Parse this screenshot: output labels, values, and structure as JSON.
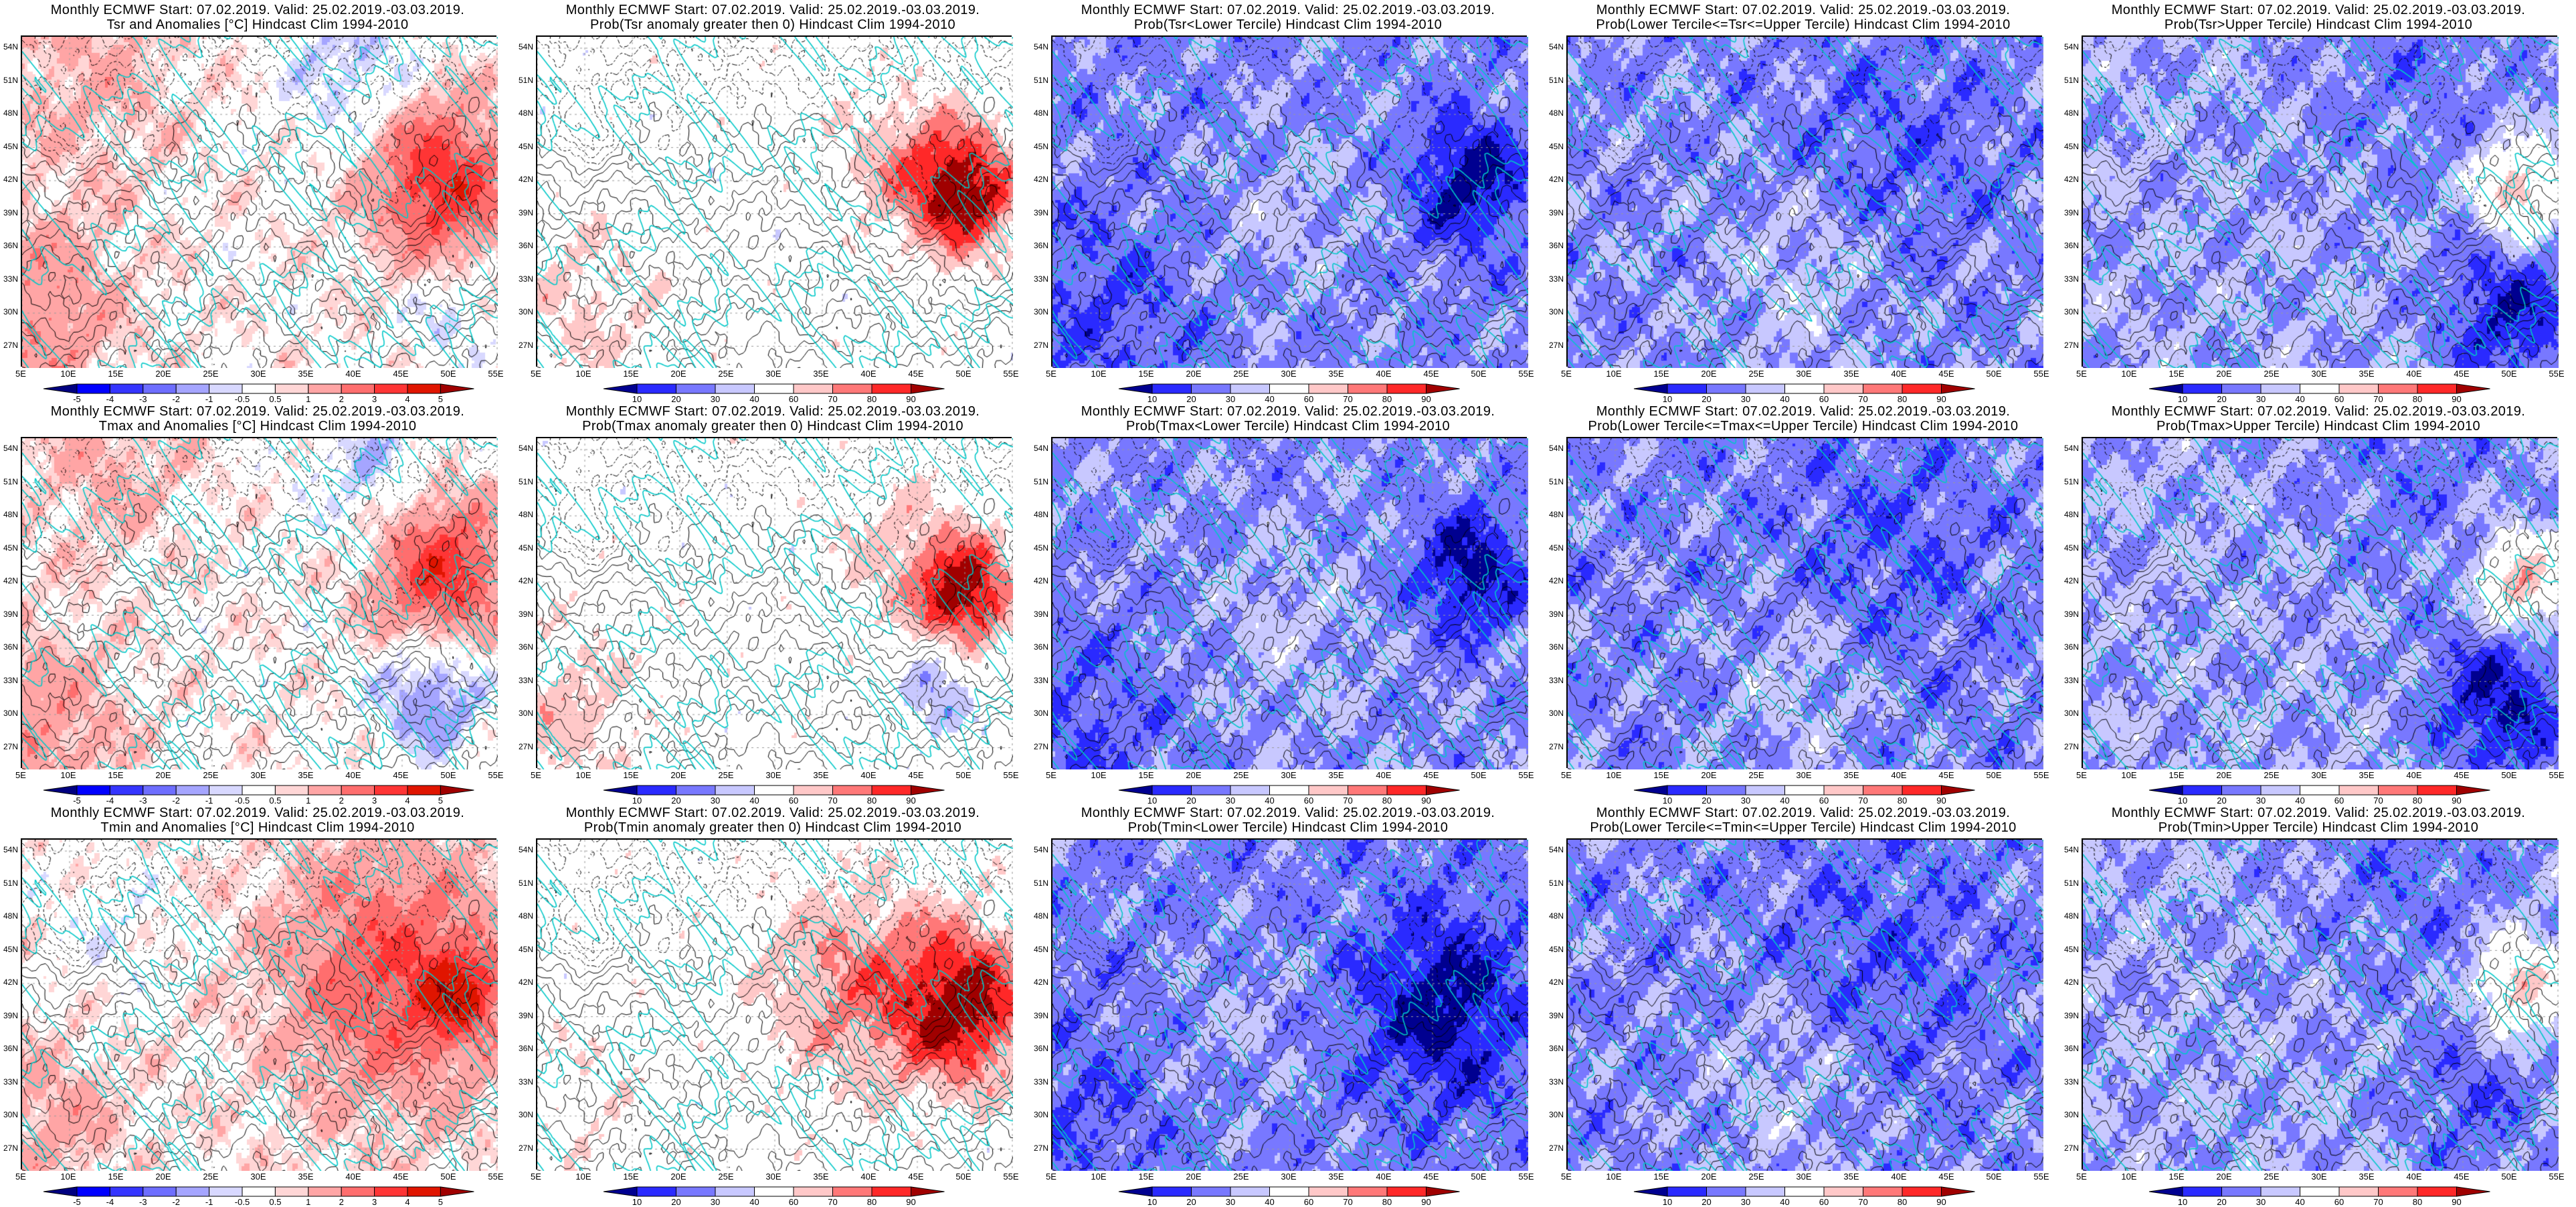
{
  "header_line": "Monthly ECMWF Start: 07.02.2019. Valid: 25.02.2019.-03.03.2019.",
  "panels": [
    {
      "title1": "Monthly ECMWF Start: 07.02.2019. Valid: 25.02.2019.-03.03.2019.",
      "title2": "Tsr and Anomalies [°C] Hindcast Clim 1994-2010",
      "colorbar": "anomaly",
      "field": "anom_tsr"
    },
    {
      "title1": "Monthly ECMWF Start: 07.02.2019. Valid: 25.02.2019.-03.03.2019.",
      "title2": "Prob(Tsr anomaly greater then 0) Hindcast Clim 1994-2010",
      "colorbar": "prob",
      "field": "pos_tsr"
    },
    {
      "title1": "Monthly ECMWF Start: 07.02.2019. Valid: 25.02.2019.-03.03.2019.",
      "title2": "Prob(Tsr<Lower Tercile) Hindcast Clim 1994-2010",
      "colorbar": "prob",
      "field": "low_tsr"
    },
    {
      "title1": "Monthly ECMWF Start: 07.02.2019. Valid: 25.02.2019.-03.03.2019.",
      "title2": "Prob(Lower Tercile<=Tsr<=Upper Tercile) Hindcast Clim 1994-2010",
      "colorbar": "prob",
      "field": "mid_tsr"
    },
    {
      "title1": "Monthly ECMWF Start: 07.02.2019. Valid: 25.02.2019.-03.03.2019.",
      "title2": "Prob(Tsr>Upper Tercile) Hindcast Clim 1994-2010",
      "colorbar": "prob",
      "field": "up_tsr"
    },
    {
      "title1": "Monthly ECMWF Start: 07.02.2019. Valid: 25.02.2019.-03.03.2019.",
      "title2": "Tmax and Anomalies [°C] Hindcast Clim 1994-2010",
      "colorbar": "anomaly",
      "field": "anom_tmax"
    },
    {
      "title1": "Monthly ECMWF Start: 07.02.2019. Valid: 25.02.2019.-03.03.2019.",
      "title2": "Prob(Tmax anomaly greater then 0) Hindcast Clim 1994-2010",
      "colorbar": "prob",
      "field": "pos_tmax"
    },
    {
      "title1": "Monthly ECMWF Start: 07.02.2019. Valid: 25.02.2019.-03.03.2019.",
      "title2": "Prob(Tmax<Lower Tercile) Hindcast Clim 1994-2010",
      "colorbar": "prob",
      "field": "low_tmax"
    },
    {
      "title1": "Monthly ECMWF Start: 07.02.2019. Valid: 25.02.2019.-03.03.2019.",
      "title2": "Prob(Lower Tercile<=Tmax<=Upper Tercile) Hindcast Clim 1994-2010",
      "colorbar": "prob",
      "field": "mid_tmax"
    },
    {
      "title1": "Monthly ECMWF Start: 07.02.2019. Valid: 25.02.2019.-03.03.2019.",
      "title2": "Prob(Tmax>Upper Tercile) Hindcast Clim 1994-2010",
      "colorbar": "prob",
      "field": "up_tmax"
    },
    {
      "title1": "Monthly ECMWF Start: 07.02.2019. Valid: 25.02.2019.-03.03.2019.",
      "title2": "Tmin and Anomalies [°C] Hindcast Clim 1994-2010",
      "colorbar": "anomaly",
      "field": "anom_tmin"
    },
    {
      "title1": "Monthly ECMWF Start: 07.02.2019. Valid: 25.02.2019.-03.03.2019.",
      "title2": "Prob(Tmin anomaly greater then 0) Hindcast Clim 1994-2010",
      "colorbar": "prob",
      "field": "pos_tmin"
    },
    {
      "title1": "Monthly ECMWF Start: 07.02.2019. Valid: 25.02.2019.-03.03.2019.",
      "title2": "Prob(Tmin<Lower Tercile) Hindcast Clim 1994-2010",
      "colorbar": "prob",
      "field": "low_tmin"
    },
    {
      "title1": "Monthly ECMWF Start: 07.02.2019. Valid: 25.02.2019.-03.03.2019.",
      "title2": "Prob(Lower Tercile<=Tmin<=Upper Tercile) Hindcast Clim 1994-2010",
      "colorbar": "prob",
      "field": "mid_tmin"
    },
    {
      "title1": "Monthly ECMWF Start: 07.02.2019. Valid: 25.02.2019.-03.03.2019.",
      "title2": "Prob(Tmin>Upper Tercile) Hindcast Clim 1994-2010",
      "colorbar": "prob",
      "field": "up_tmin"
    }
  ],
  "axes": {
    "lat_values": [
      54,
      51,
      48,
      45,
      42,
      39,
      36,
      33,
      30,
      27
    ],
    "lat_labels": [
      "54N",
      "51N",
      "48N",
      "45N",
      "42N",
      "39N",
      "36N",
      "33N",
      "30N",
      "27N"
    ],
    "lon_values": [
      5,
      10,
      15,
      20,
      25,
      30,
      35,
      40,
      45,
      50,
      55
    ],
    "lon_labels": [
      "5E",
      "10E",
      "15E",
      "20E",
      "25E",
      "30E",
      "35E",
      "40E",
      "45E",
      "50E",
      "55E"
    ],
    "lon_range": [
      5,
      55
    ],
    "lat_range": [
      25,
      55
    ]
  },
  "colorbars": {
    "anomaly": {
      "levels": [
        -5,
        -4,
        -3,
        -2,
        -1,
        -0.5,
        0.5,
        1,
        2,
        3,
        4,
        5
      ],
      "labels": [
        "-5",
        "-4",
        "-3",
        "-2",
        "-1",
        "-0.5",
        "0.5",
        "1",
        "2",
        "3",
        "4",
        "5"
      ],
      "colors": [
        "#000080",
        "#0000ff",
        "#3535ff",
        "#6e6eff",
        "#a5a5ff",
        "#d8d8ff",
        "#ffffff",
        "#ffd6d6",
        "#ffa5a5",
        "#ff6e6e",
        "#ff3535",
        "#e01500",
        "#a00000"
      ]
    },
    "prob": {
      "levels": [
        10,
        20,
        30,
        40,
        60,
        70,
        80,
        90
      ],
      "labels": [
        "10",
        "20",
        "30",
        "40",
        "60",
        "70",
        "80",
        "90"
      ],
      "colors": [
        "#000090",
        "#2a2aff",
        "#7878ff",
        "#c8c8ff",
        "#ffffff",
        "#ffc8c8",
        "#ff7878",
        "#ff2828",
        "#a00000"
      ]
    }
  },
  "colors": {
    "contour": "#000000",
    "coastline": "#00c8c8",
    "grid": "#999999"
  }
}
